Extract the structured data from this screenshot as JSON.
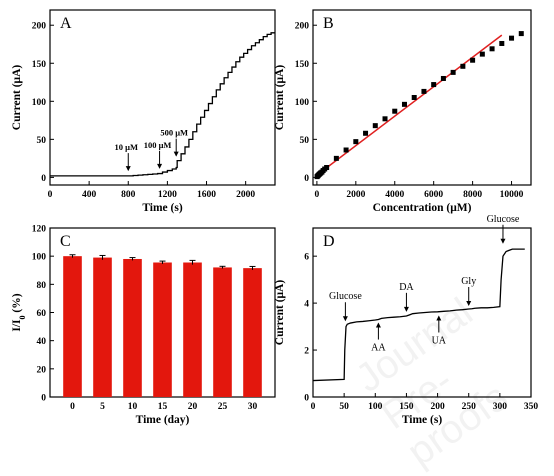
{
  "watermark": "Journal Pre-proofs",
  "colors": {
    "axis": "#000000",
    "red": "#e3170d",
    "fit": "#e02020"
  },
  "chart_data": [
    {
      "id": "A",
      "type": "line",
      "panel_label": "A",
      "xlabel": "Time (s)",
      "ylabel": "Current (μA)",
      "xlim": [
        0,
        2300
      ],
      "ylim": [
        -10,
        220
      ],
      "xticks": [
        0,
        400,
        800,
        1200,
        1600,
        2000
      ],
      "yticks": [
        0,
        50,
        100,
        150,
        200
      ],
      "annotations": [
        {
          "text": "10 μM",
          "x": 800,
          "y": 3
        },
        {
          "text": "100 μM",
          "x": 1120,
          "y": 6
        },
        {
          "text": "500 μM",
          "x": 1290,
          "y": 22
        }
      ],
      "x": [
        0,
        100,
        200,
        300,
        400,
        500,
        600,
        700,
        800,
        850,
        900,
        950,
        1000,
        1050,
        1100,
        1150,
        1200,
        1250,
        1290,
        1300,
        1340,
        1380,
        1420,
        1460,
        1500,
        1540,
        1580,
        1620,
        1660,
        1700,
        1740,
        1780,
        1820,
        1860,
        1900,
        1940,
        1980,
        2020,
        2060,
        2100,
        2140,
        2180,
        2220,
        2260,
        2300
      ],
      "values": [
        2,
        2,
        2,
        2,
        2,
        2,
        2,
        2,
        2,
        2.5,
        3,
        3.5,
        4,
        4.5,
        5,
        7,
        9,
        11,
        13,
        22,
        31,
        40,
        50,
        60,
        70,
        79,
        88,
        97,
        106,
        115,
        123,
        131,
        138,
        145,
        152,
        158,
        163,
        168,
        173,
        177,
        181,
        185,
        188,
        190,
        190
      ]
    },
    {
      "id": "B",
      "type": "scatter",
      "panel_label": "B",
      "xlabel": "Concentration (μM)",
      "ylabel": "Current (μA)",
      "xlim": [
        -200,
        11000
      ],
      "ylim": [
        -10,
        220
      ],
      "xticks": [
        0,
        2000,
        4000,
        6000,
        8000,
        10000
      ],
      "yticks": [
        0,
        50,
        100,
        150,
        200
      ],
      "x": [
        10,
        40,
        80,
        120,
        160,
        200,
        260,
        320,
        400,
        500,
        1000,
        1500,
        2000,
        2500,
        3000,
        3500,
        4000,
        4500,
        5000,
        5500,
        6000,
        6500,
        7000,
        7500,
        8000,
        8500,
        9000,
        9500,
        10000,
        10500
      ],
      "values": [
        1,
        2,
        3,
        4,
        5,
        6,
        7,
        9,
        11,
        13,
        25,
        36,
        47,
        58,
        68,
        77,
        87,
        96,
        105,
        113,
        122,
        130,
        138,
        146,
        154,
        162,
        169,
        176,
        183,
        189
      ],
      "fit": {
        "x": [
          0,
          9500
        ],
        "y": [
          3,
          187
        ]
      }
    },
    {
      "id": "C",
      "type": "bar",
      "panel_label": "C",
      "xlabel": "Time (day)",
      "ylabel": "I/I0 (%)",
      "ylim": [
        0,
        120
      ],
      "yticks": [
        0,
        20,
        40,
        60,
        80,
        100,
        120
      ],
      "categories": [
        "0",
        "5",
        "10",
        "15",
        "20",
        "25",
        "30"
      ],
      "values": [
        100,
        99,
        98,
        95.5,
        95.5,
        92,
        91.5
      ],
      "errors": [
        1,
        1.5,
        1,
        1,
        1.5,
        0.8,
        1.2
      ]
    },
    {
      "id": "D",
      "type": "line",
      "panel_label": "D",
      "xlabel": "Time (s)",
      "ylabel": "Current (μA)",
      "xlim": [
        0,
        350
      ],
      "ylim": [
        0,
        7.2
      ],
      "xticks": [
        0,
        50,
        100,
        150,
        200,
        250,
        300,
        350
      ],
      "yticks": [
        0,
        2,
        4,
        6
      ],
      "annotations": [
        {
          "text": "Glucose",
          "x": 52,
          "y": 3.1,
          "side": "above"
        },
        {
          "text": "AA",
          "x": 105,
          "y": 3.3,
          "side": "below"
        },
        {
          "text": "DA",
          "x": 150,
          "y": 3.5,
          "side": "above"
        },
        {
          "text": "UA",
          "x": 202,
          "y": 3.6,
          "side": "below"
        },
        {
          "text": "Gly",
          "x": 250,
          "y": 3.75,
          "side": "above"
        },
        {
          "text": "Glucose",
          "x": 305,
          "y": 6.4,
          "side": "above"
        }
      ],
      "x": [
        0,
        50,
        51,
        53,
        55,
        60,
        70,
        80,
        90,
        100,
        105,
        110,
        120,
        130,
        140,
        150,
        155,
        160,
        170,
        180,
        190,
        200,
        210,
        220,
        230,
        240,
        250,
        255,
        260,
        270,
        280,
        290,
        300,
        302,
        305,
        310,
        320,
        330,
        340
      ],
      "values": [
        0.7,
        0.75,
        2.0,
        3.0,
        3.1,
        3.15,
        3.2,
        3.22,
        3.25,
        3.28,
        3.3,
        3.35,
        3.38,
        3.4,
        3.42,
        3.45,
        3.5,
        3.55,
        3.58,
        3.6,
        3.62,
        3.63,
        3.65,
        3.67,
        3.7,
        3.72,
        3.75,
        3.76,
        3.78,
        3.8,
        3.8,
        3.82,
        3.85,
        5.0,
        6.0,
        6.2,
        6.3,
        6.3,
        6.3
      ]
    }
  ]
}
